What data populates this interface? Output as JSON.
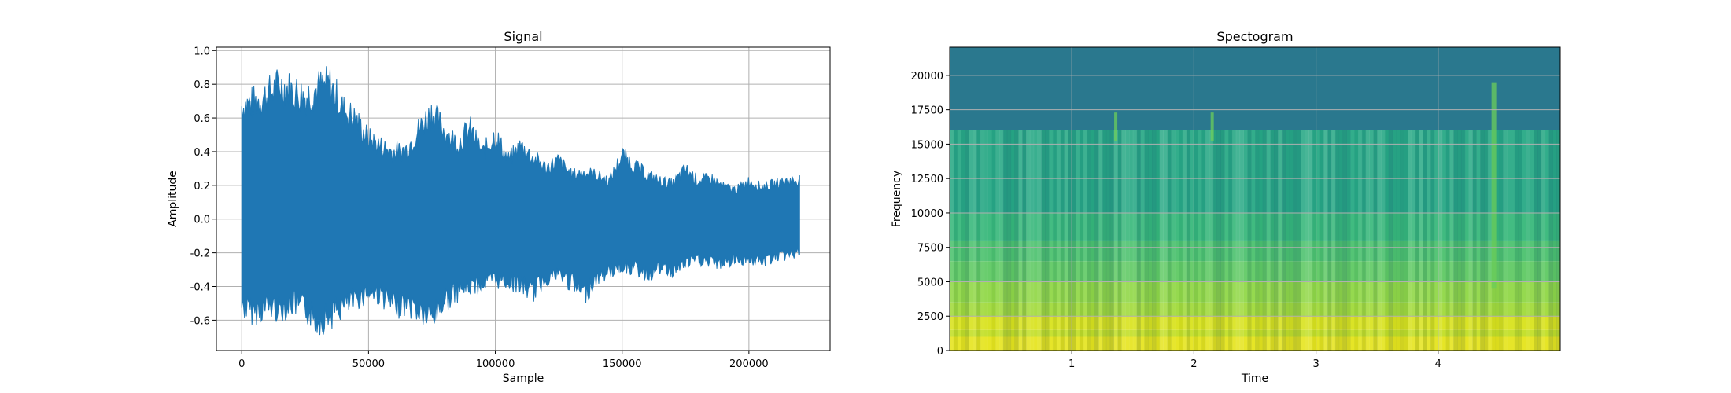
{
  "chart_data": [
    {
      "type": "line",
      "title": "Signal",
      "xlabel": "Sample",
      "ylabel": "Amplitude",
      "xlim": [
        -10000,
        232000
      ],
      "ylim": [
        -0.78,
        1.02
      ],
      "xticks": [
        0,
        50000,
        100000,
        150000,
        200000
      ],
      "xtick_labels": [
        "0",
        "50000",
        "100000",
        "150000",
        "200000"
      ],
      "yticks": [
        -0.6,
        -0.4,
        -0.2,
        0.0,
        0.2,
        0.4,
        0.6,
        0.8,
        1.0
      ],
      "ytick_labels": [
        "-0.6",
        "-0.4",
        "-0.2",
        "0.0",
        "0.2",
        "0.4",
        "0.6",
        "0.8",
        "1.0"
      ],
      "grid": true,
      "color": "#1f77b4",
      "series": [
        {
          "x": [
            0,
            5000,
            10000,
            15000,
            20000,
            25000,
            30000,
            35000,
            40000,
            45000,
            50000,
            55000,
            60000,
            65000,
            70000,
            75000,
            80000,
            85000,
            90000,
            95000,
            100000,
            105000,
            110000,
            115000,
            120000,
            125000,
            130000,
            135000,
            140000,
            145000,
            150000,
            155000,
            160000,
            165000,
            170000,
            175000,
            180000,
            185000,
            190000,
            195000,
            200000,
            205000,
            210000,
            215000,
            220000
          ],
          "upper": [
            0.78,
            0.8,
            0.85,
            0.92,
            0.88,
            0.84,
            0.9,
            0.92,
            0.75,
            0.68,
            0.55,
            0.5,
            0.46,
            0.48,
            0.62,
            0.74,
            0.6,
            0.52,
            0.62,
            0.45,
            0.58,
            0.4,
            0.5,
            0.42,
            0.35,
            0.4,
            0.3,
            0.32,
            0.3,
            0.26,
            0.44,
            0.36,
            0.3,
            0.26,
            0.24,
            0.34,
            0.26,
            0.28,
            0.22,
            0.2,
            0.26,
            0.22,
            0.24,
            0.26,
            0.27
          ],
          "lower": [
            -0.6,
            -0.64,
            -0.6,
            -0.62,
            -0.58,
            -0.62,
            -0.7,
            -0.66,
            -0.6,
            -0.55,
            -0.5,
            -0.52,
            -0.6,
            -0.58,
            -0.64,
            -0.68,
            -0.56,
            -0.5,
            -0.46,
            -0.44,
            -0.42,
            -0.42,
            -0.46,
            -0.5,
            -0.4,
            -0.38,
            -0.44,
            -0.52,
            -0.4,
            -0.36,
            -0.32,
            -0.34,
            -0.38,
            -0.34,
            -0.36,
            -0.3,
            -0.28,
            -0.3,
            -0.3,
            -0.28,
            -0.27,
            -0.3,
            -0.26,
            -0.25,
            -0.22
          ]
        }
      ]
    },
    {
      "type": "heatmap",
      "title": "Spectogram",
      "xlabel": "Time",
      "ylabel": "Frequency",
      "xlim": [
        0,
        5.0
      ],
      "ylim": [
        0,
        22050
      ],
      "xticks": [
        1,
        2,
        3,
        4
      ],
      "xtick_labels": [
        "1",
        "2",
        "3",
        "4"
      ],
      "yticks": [
        0,
        2500,
        5000,
        7500,
        10000,
        12500,
        15000,
        17500,
        20000
      ],
      "ytick_labels": [
        "0",
        "2500",
        "5000",
        "7500",
        "10000",
        "12500",
        "15000",
        "17500",
        "20000"
      ],
      "grid": true,
      "colormap": "viridis",
      "cutoff_frequency": 16000,
      "transient_times": [
        1.36,
        2.15,
        4.45
      ],
      "bands": [
        {
          "from": 0,
          "to": 1000,
          "color": "#e5e419"
        },
        {
          "from": 1000,
          "to": 1500,
          "color": "#c2df23"
        },
        {
          "from": 1500,
          "to": 2500,
          "color": "#d8e219"
        },
        {
          "from": 2500,
          "to": 3500,
          "color": "#a0da39"
        },
        {
          "from": 3500,
          "to": 5000,
          "color": "#8fd744"
        },
        {
          "from": 5000,
          "to": 6500,
          "color": "#5ec962"
        },
        {
          "from": 6500,
          "to": 8000,
          "color": "#4ac16d"
        },
        {
          "from": 8000,
          "to": 10000,
          "color": "#35b779"
        },
        {
          "from": 10000,
          "to": 16000,
          "color": "#26a884"
        },
        {
          "from": 16000,
          "to": 22050,
          "color": "#2a788e"
        }
      ]
    }
  ]
}
